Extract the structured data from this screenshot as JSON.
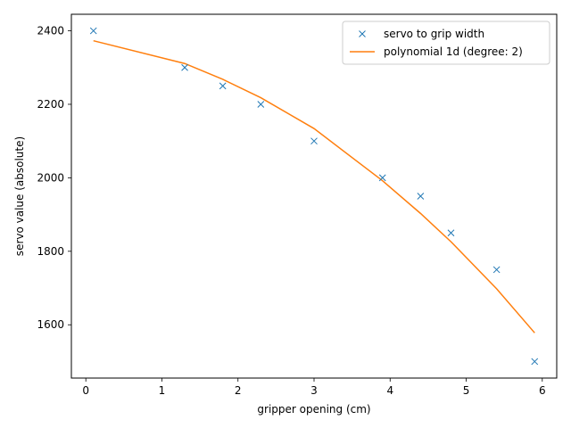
{
  "chart_data": {
    "type": "line",
    "title": "",
    "xlabel": "gripper opening (cm)",
    "ylabel": "servo value (absolute)",
    "xlim": [
      -0.19,
      6.19
    ],
    "ylim": [
      1455,
      2445
    ],
    "xticks": [
      0,
      1,
      2,
      3,
      4,
      5,
      6
    ],
    "yticks": [
      1600,
      1800,
      2000,
      2200,
      2400
    ],
    "grid": false,
    "legend_position": "top-right",
    "series": [
      {
        "name": "servo to grip width",
        "style": "markers-x",
        "color": "#1f77b4",
        "x": [
          0.1,
          1.3,
          1.8,
          2.3,
          3.0,
          3.9,
          4.4,
          4.8,
          5.4,
          5.9
        ],
        "y": [
          2400,
          2300,
          2250,
          2200,
          2100,
          2000,
          1950,
          1850,
          1750,
          1500
        ]
      },
      {
        "name": "polynomial 1d (degree: 2)",
        "style": "line",
        "color": "#ff7f0e",
        "x": [
          0.1,
          1.3,
          1.8,
          2.3,
          3.0,
          3.9,
          4.4,
          4.8,
          5.4,
          5.9
        ],
        "y": [
          2373,
          2311,
          2268,
          2218,
          2134,
          1992,
          1903,
          1826,
          1698,
          1578
        ]
      }
    ]
  }
}
